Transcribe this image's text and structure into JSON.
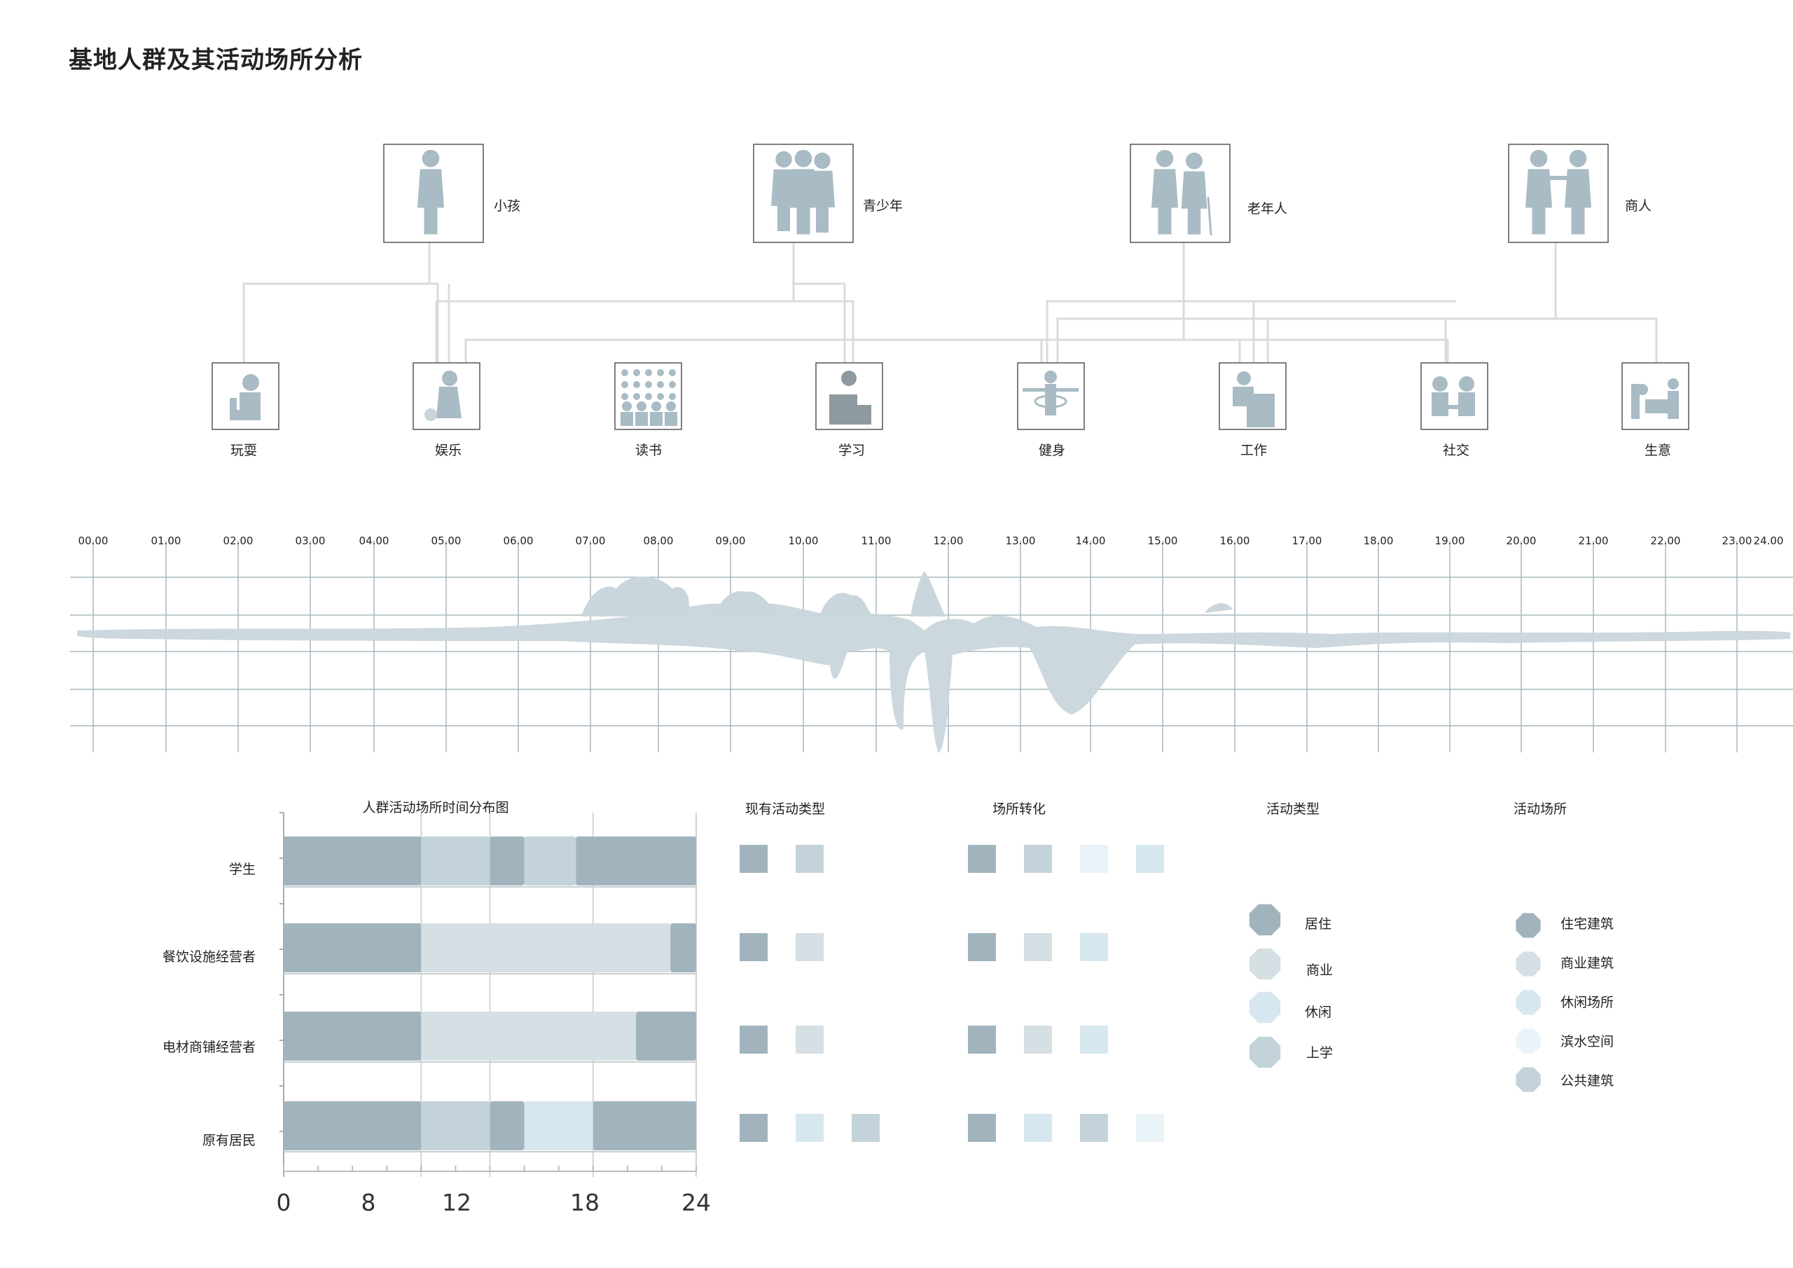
{
  "title": "基地人群及其活动场所分析",
  "colors": {
    "dark": "#a1b4be",
    "medium": "#c4d3da",
    "lightGray": "#d6dfe4",
    "pale": "#d7e7f0",
    "veryPale": "#eaf3f8",
    "lines": "#d4d7d8",
    "grid": "#a7b7bd"
  },
  "people": [
    {
      "label": "小孩",
      "icon": "child-icon"
    },
    {
      "label": "青少年",
      "icon": "teenagers-icon"
    },
    {
      "label": "老年人",
      "icon": "elderly-couple-icon"
    },
    {
      "label": "商人",
      "icon": "businessmen-handshake-icon"
    }
  ],
  "activities": [
    {
      "label": "玩耍",
      "icon": "child-playing-icon"
    },
    {
      "label": "娱乐",
      "icon": "leisure-with-dog-icon"
    },
    {
      "label": "读书",
      "icon": "classroom-icon"
    },
    {
      "label": "学习",
      "icon": "student-desk-icon"
    },
    {
      "label": "健身",
      "icon": "exercise-icon"
    },
    {
      "label": "工作",
      "icon": "office-worker-icon"
    },
    {
      "label": "社交",
      "icon": "two-people-talking-icon"
    },
    {
      "label": "生意",
      "icon": "trade-counter-icon"
    }
  ],
  "timeline": {
    "hours": [
      "00.00",
      "01.00",
      "02.00",
      "03.00",
      "04.00",
      "05.00",
      "06.00",
      "07.00",
      "08.00",
      "09.00",
      "10.00",
      "11.00",
      "12.00",
      "13.00",
      "14.00",
      "15.00",
      "16.00",
      "17.00",
      "18.00",
      "19.00",
      "20.00",
      "21.00",
      "22.00",
      "23.00",
      "24.00"
    ]
  },
  "chart_data": {
    "type": "bar",
    "title": "人群活动场所时间分布图",
    "categories": [
      "学生",
      "餐饮设施经营者",
      "电材商铺经营者",
      "原有居民"
    ],
    "x_ticks": [
      "0",
      "8",
      "12",
      "18",
      "24"
    ],
    "xlim": [
      0,
      24
    ],
    "rows": [
      {
        "segments": [
          {
            "start": 0,
            "end": 8,
            "color": "dark"
          },
          {
            "start": 8,
            "end": 12,
            "color": "medium"
          },
          {
            "start": 12,
            "end": 14,
            "color": "dark"
          },
          {
            "start": 14,
            "end": 17,
            "color": "medium"
          },
          {
            "start": 17,
            "end": 24,
            "color": "dark"
          }
        ]
      },
      {
        "segments": [
          {
            "start": 0,
            "end": 8,
            "color": "dark"
          },
          {
            "start": 8,
            "end": 22.5,
            "color": "lightGray"
          },
          {
            "start": 22.5,
            "end": 24,
            "color": "dark"
          }
        ]
      },
      {
        "segments": [
          {
            "start": 0,
            "end": 8,
            "color": "dark"
          },
          {
            "start": 8,
            "end": 20.5,
            "color": "lightGray"
          },
          {
            "start": 20.5,
            "end": 24,
            "color": "dark"
          }
        ]
      },
      {
        "segments": [
          {
            "start": 0,
            "end": 8,
            "color": "dark"
          },
          {
            "start": 8,
            "end": 12,
            "color": "medium"
          },
          {
            "start": 12,
            "end": 14,
            "color": "dark"
          },
          {
            "start": 14,
            "end": 18,
            "color": "pale"
          },
          {
            "start": 18,
            "end": 24,
            "color": "dark"
          }
        ]
      }
    ]
  },
  "existing_types": {
    "header": "现有活动类型",
    "rows": [
      [
        "dark",
        "medium"
      ],
      [
        "dark",
        "lightGray"
      ],
      [
        "dark",
        "lightGray"
      ],
      [
        "dark",
        "pale",
        "medium"
      ]
    ]
  },
  "conversion": {
    "header": "场所转化",
    "rows": [
      [
        "dark",
        "medium",
        "veryPale",
        "pale"
      ],
      [
        "dark",
        "lightGray",
        "pale"
      ],
      [
        "dark",
        "lightGray",
        "pale"
      ],
      [
        "dark",
        "pale",
        "medium",
        "veryPale"
      ]
    ]
  },
  "legend_activity": {
    "header": "活动类型",
    "items": [
      {
        "label": "居住",
        "color": "dark"
      },
      {
        "label": "商业",
        "color": "lightGray"
      },
      {
        "label": "休闲",
        "color": "pale"
      },
      {
        "label": "上学",
        "color": "medium"
      }
    ]
  },
  "legend_place": {
    "header": "活动场所",
    "items": [
      {
        "label": "住宅建筑",
        "color": "dark"
      },
      {
        "label": "商业建筑",
        "color": "lightGray"
      },
      {
        "label": "休闲场所",
        "color": "pale"
      },
      {
        "label": "滨水空间",
        "color": "veryPale"
      },
      {
        "label": "公共建筑",
        "color": "medium"
      }
    ]
  }
}
